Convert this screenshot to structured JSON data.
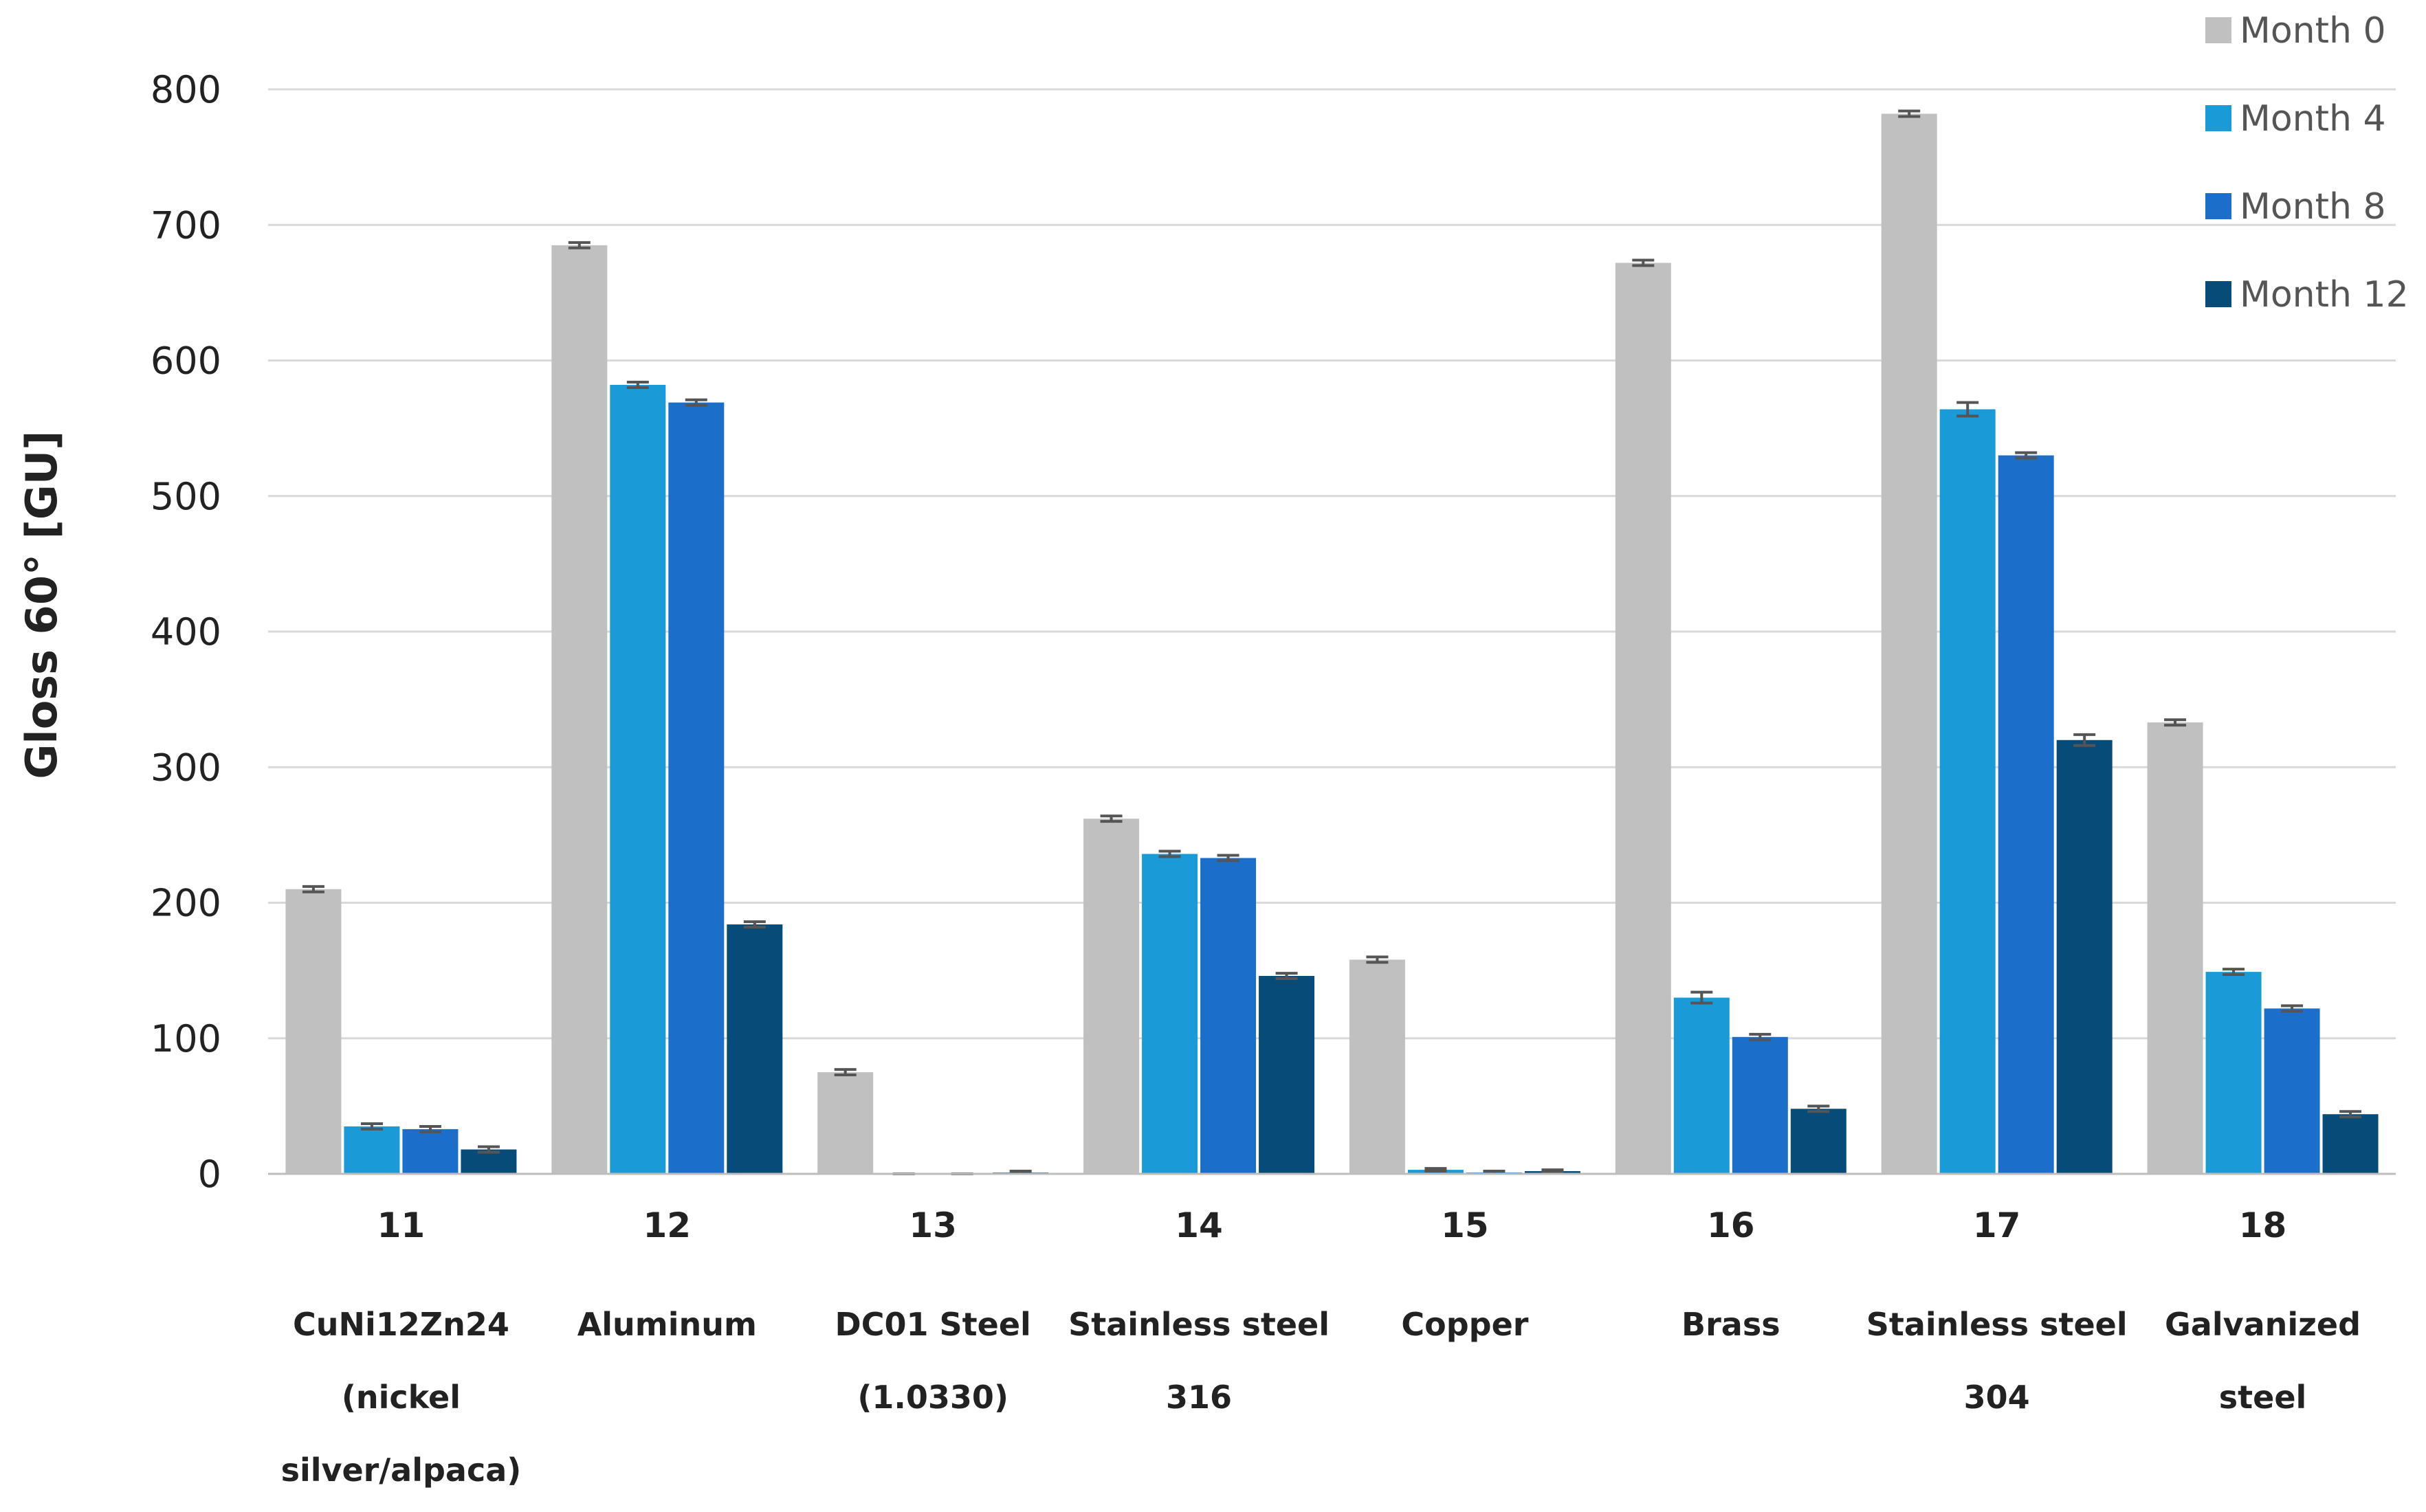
{
  "chart_data": {
    "type": "bar",
    "ylabel": "Gloss 60° [GU]",
    "ylim": [
      0,
      800
    ],
    "yticks": [
      "0",
      "100",
      "200",
      "300",
      "400",
      "500",
      "600",
      "700",
      "800"
    ],
    "grid": true,
    "legend_position": "top-right",
    "categories": [
      "11",
      "12",
      "13",
      "14",
      "15",
      "16",
      "17",
      "18"
    ],
    "materials": [
      [
        "CuNi12Zn24",
        "(nickel",
        "silver/alpaca)"
      ],
      [
        "Aluminum"
      ],
      [
        "DC01 Steel",
        "(1.0330)"
      ],
      [
        "Stainless steel",
        "316"
      ],
      [
        "Copper"
      ],
      [
        "Brass"
      ],
      [
        "Stainless steel",
        "304"
      ],
      [
        "Galvanized",
        "steel"
      ]
    ],
    "series": [
      {
        "name": "Month 0",
        "color": "#c0c0c0",
        "values": [
          210,
          685,
          75,
          262,
          158,
          672,
          782,
          333
        ],
        "errors": [
          2,
          2,
          2,
          2,
          2,
          2,
          2,
          2
        ]
      },
      {
        "name": "Month 4",
        "color": "#1b9ad8",
        "values": [
          35,
          582,
          0,
          236,
          3,
          130,
          564,
          149
        ],
        "errors": [
          2,
          2,
          0,
          2,
          1,
          4,
          5,
          2
        ]
      },
      {
        "name": "Month 8",
        "color": "#1b6fca",
        "values": [
          33,
          569,
          0,
          233,
          1,
          101,
          530,
          122
        ],
        "errors": [
          2,
          2,
          0,
          2,
          1,
          2,
          2,
          2
        ]
      },
      {
        "name": "Month 12",
        "color": "#074b78",
        "values": [
          18,
          184,
          1,
          146,
          2,
          48,
          320,
          44
        ],
        "errors": [
          2,
          2,
          1,
          2,
          1,
          2,
          4,
          2
        ]
      }
    ]
  }
}
